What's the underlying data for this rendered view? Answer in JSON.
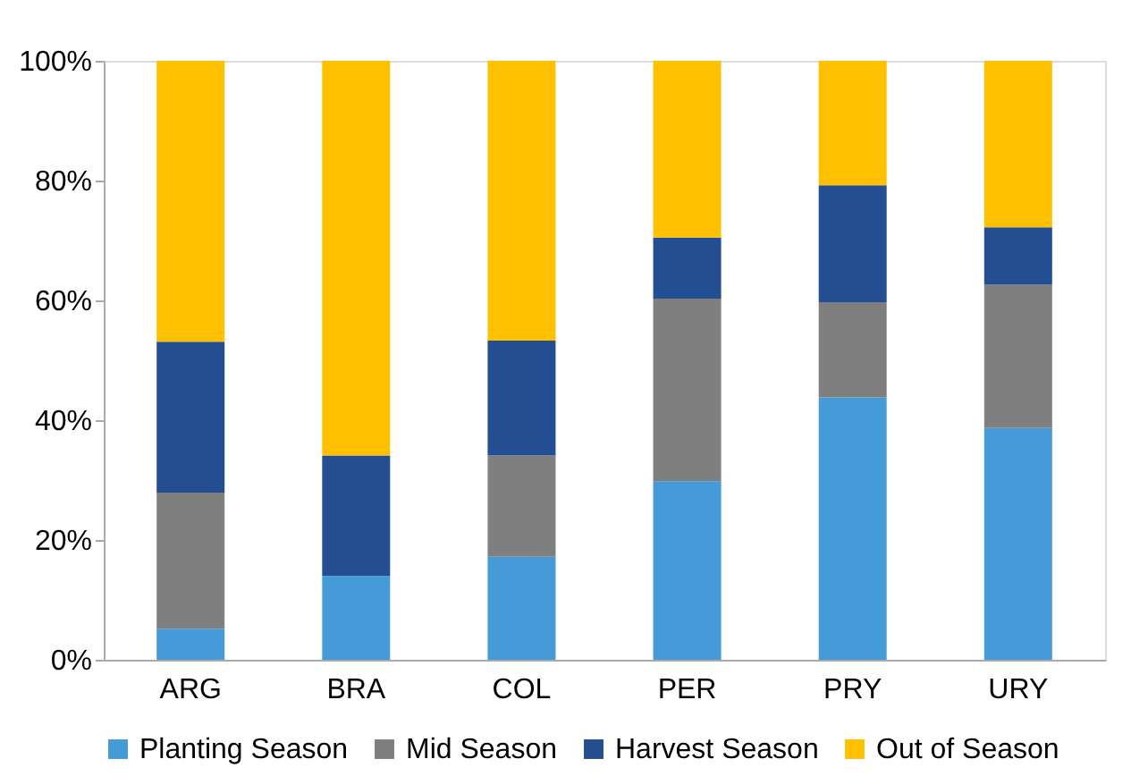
{
  "chart_data": {
    "type": "bar",
    "stacked": true,
    "categories": [
      "ARG",
      "BRA",
      "COL",
      "PER",
      "PRY",
      "URY"
    ],
    "series": [
      {
        "name": "Planting Season",
        "color": "#449bd8",
        "values": [
          5.2,
          14.0,
          17.2,
          29.8,
          43.8,
          38.7
        ]
      },
      {
        "name": "Mid Season",
        "color": "#7f7f7f",
        "values": [
          22.7,
          0,
          16.9,
          30.5,
          15.9,
          23.9
        ]
      },
      {
        "name": "Harvest Season",
        "color": "#234e91",
        "values": [
          25.2,
          20.1,
          19.2,
          10.2,
          19.5,
          9.6
        ]
      },
      {
        "name": "Out of Season",
        "color": "#ffc000",
        "values": [
          46.9,
          65.9,
          46.7,
          29.5,
          20.8,
          27.8
        ]
      }
    ],
    "ylim": [
      0,
      100
    ],
    "yticks": [
      {
        "value": 0,
        "label": "0%"
      },
      {
        "value": 20,
        "label": "20%"
      },
      {
        "value": 40,
        "label": "40%"
      },
      {
        "value": 60,
        "label": "60%"
      },
      {
        "value": 80,
        "label": "80%"
      },
      {
        "value": 100,
        "label": "100%"
      }
    ],
    "grid": false,
    "legend": "bottom"
  }
}
